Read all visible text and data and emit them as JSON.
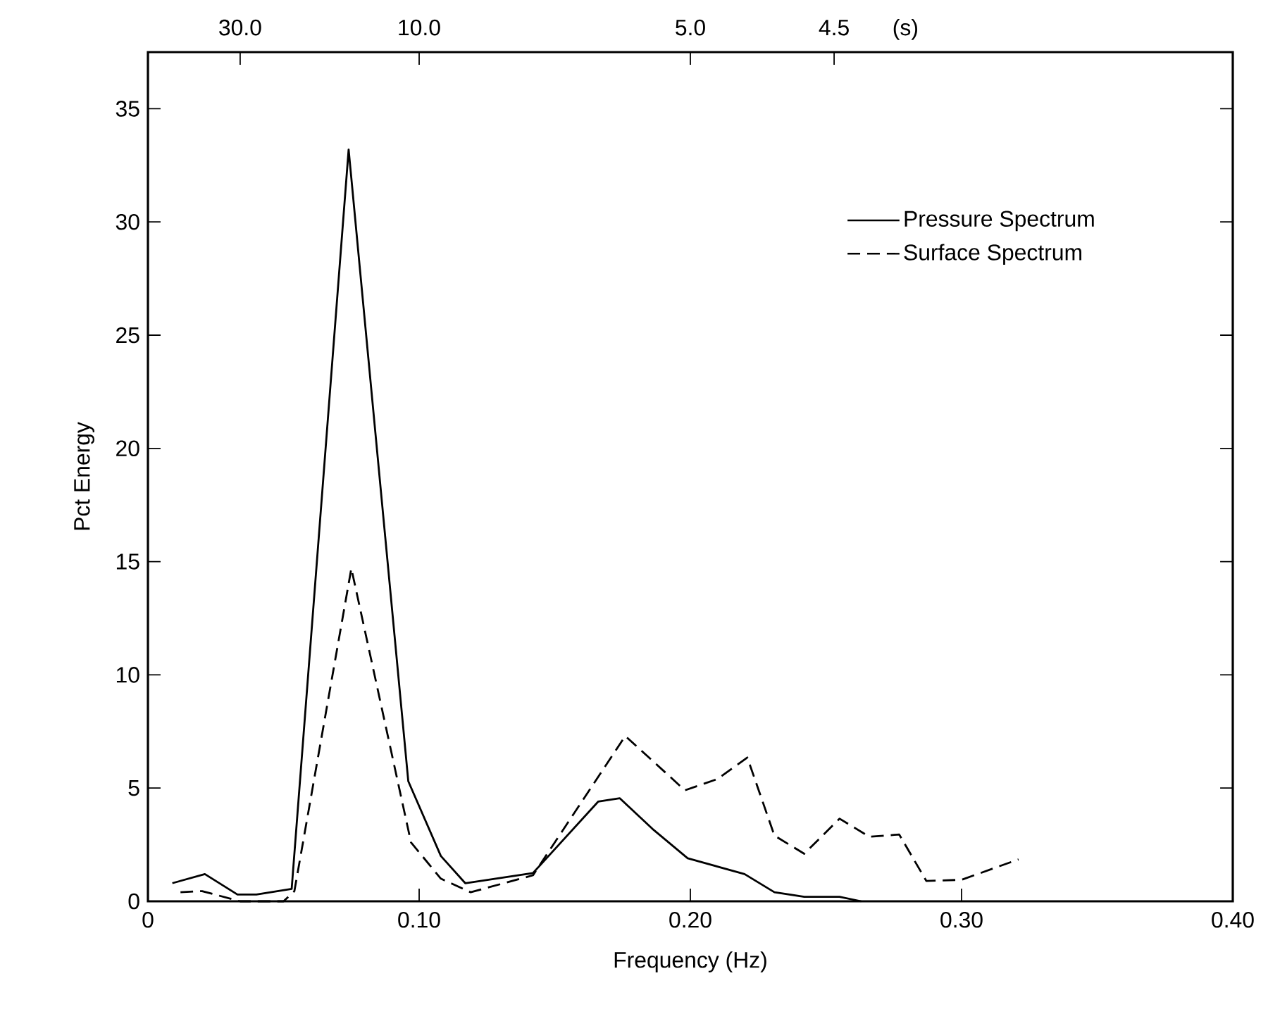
{
  "chart_data": {
    "type": "line",
    "xlabel": "Frequency (Hz)",
    "ylabel": "Pct Energy",
    "xlim": [
      0,
      0.4
    ],
    "ylim": [
      0,
      37.5
    ],
    "xticks": [
      {
        "value": 0,
        "label": "0"
      },
      {
        "value": 0.1,
        "label": "0.10"
      },
      {
        "value": 0.2,
        "label": "0.20"
      },
      {
        "value": 0.3,
        "label": "0.30"
      },
      {
        "value": 0.4,
        "label": "0.40"
      }
    ],
    "yticks": [
      0,
      5,
      10,
      15,
      20,
      25,
      30,
      35
    ],
    "annotations": [
      "30.0",
      "10.0",
      "5.0",
      "4.5",
      "(s)"
    ],
    "legend": "top right",
    "grid": false,
    "marker": "none",
    "series": [
      {
        "name": "Pressure Spectrum",
        "color": "#000000",
        "line_style": "solid",
        "x": [
          0.009,
          0.021,
          0.033,
          0.04,
          0.053,
          0.074,
          0.096,
          0.108,
          0.117,
          0.142,
          0.166,
          0.174,
          0.186,
          0.199,
          0.22,
          0.231,
          0.242,
          0.255,
          0.263
        ],
        "values": [
          0.8,
          1.2,
          0.3,
          0.3,
          0.55,
          33.2,
          5.3,
          2.0,
          0.8,
          1.25,
          4.4,
          4.55,
          3.2,
          1.9,
          1.2,
          0.4,
          0.2,
          0.2,
          0
        ]
      },
      {
        "name": "Surface Spectrum",
        "color": "#000000",
        "line_style": "dashed",
        "x": [
          0.012,
          0.02,
          0.034,
          0.05,
          0.054,
          0.075,
          0.097,
          0.108,
          0.119,
          0.142,
          0.176,
          0.198,
          0.21,
          0.221,
          0.231,
          0.242,
          0.255,
          0.266,
          0.277,
          0.287,
          0.3,
          0.321
        ],
        "values": [
          0.4,
          0.45,
          0,
          0,
          0.45,
          14.7,
          2.6,
          1.0,
          0.4,
          1.15,
          7.3,
          4.9,
          5.4,
          6.35,
          2.9,
          2.1,
          3.65,
          2.85,
          2.95,
          0.9,
          0.95,
          1.85
        ]
      }
    ]
  }
}
